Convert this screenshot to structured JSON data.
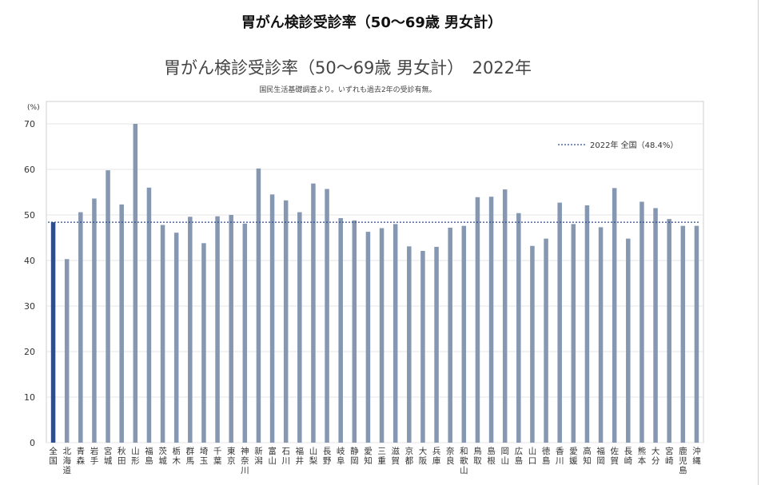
{
  "page_title": "胃がん検診受診率（50～69歳 男女計）",
  "chart_data": {
    "type": "bar",
    "title": "胃がん検診受診率（50～69歳 男女計）　2022年",
    "subtitle": "国民生活基礎調査より。いずれも過去2年の受診有無。",
    "ylabel": "(%)",
    "xlabel": "",
    "ylim": [
      0,
      70
    ],
    "yticks": [
      0,
      10,
      20,
      30,
      40,
      50,
      60,
      70
    ],
    "grid": true,
    "categories": [
      "全国",
      "北海道",
      "青森",
      "岩手",
      "宮城",
      "秋田",
      "山形",
      "福島",
      "茨城",
      "栃木",
      "群馬",
      "埼玉",
      "千葉",
      "東京",
      "神奈川",
      "新潟",
      "富山",
      "石川",
      "福井",
      "山梨",
      "長野",
      "岐阜",
      "静岡",
      "愛知",
      "三重",
      "滋賀",
      "京都",
      "大阪",
      "兵庫",
      "奈良",
      "和歌山",
      "鳥取",
      "島根",
      "岡山",
      "広島",
      "山口",
      "徳島",
      "香川",
      "愛媛",
      "高知",
      "福岡",
      "佐賀",
      "長崎",
      "熊本",
      "大分",
      "宮崎",
      "鹿児島",
      "沖縄"
    ],
    "values": [
      48.4,
      40.3,
      50.6,
      53.6,
      59.8,
      52.3,
      70.0,
      56.0,
      47.8,
      46.1,
      49.6,
      43.8,
      49.7,
      50.0,
      48.1,
      60.2,
      54.5,
      53.2,
      50.6,
      56.9,
      55.7,
      49.3,
      48.8,
      46.3,
      47.1,
      48.0,
      43.1,
      42.1,
      43.0,
      47.2,
      47.6,
      53.9,
      54.0,
      55.6,
      50.4,
      43.2,
      44.8,
      52.7,
      48.0,
      52.1,
      47.3,
      55.9,
      44.8,
      52.9,
      51.5,
      49.1,
      47.6,
      47.6
    ],
    "highlight_index": 0,
    "reference_line": {
      "value": 48.4,
      "label": "2022年 全国（48.4%）"
    },
    "legend_position": "top-right",
    "colors": {
      "bar": "#8597b1",
      "highlight": "#2f4d8a",
      "reference": "#2f4d8a",
      "grid": "#e4e4e4"
    }
  }
}
